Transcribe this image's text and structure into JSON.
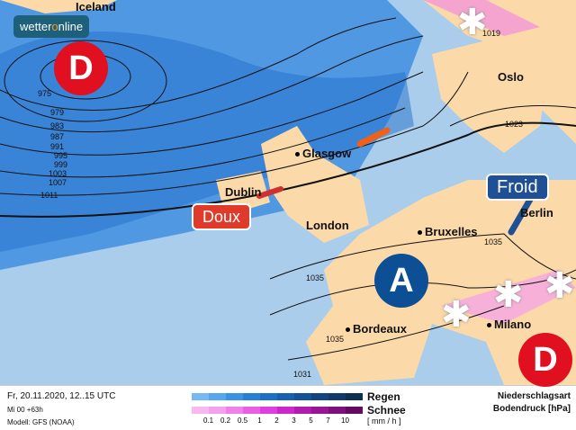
{
  "logo": {
    "prefix": "wetter",
    "highlight": "o",
    "suffix": "nline"
  },
  "map": {
    "cities": [
      "Iceland",
      "Oslo",
      "Glasgow",
      "Dublin",
      "London",
      "Bruxelles",
      "Berlin",
      "Bordeaux",
      "Milano"
    ],
    "isobars": [
      "975",
      "979",
      "983",
      "987",
      "991",
      "995",
      "999",
      "1003",
      "1007",
      "1011",
      "1019",
      "1023",
      "1035",
      "1035",
      "1035",
      "1031"
    ],
    "pressure_systems": [
      {
        "label": "D",
        "type": "low",
        "color": "#e01020"
      },
      {
        "label": "A",
        "type": "high",
        "color": "#0c4f95"
      },
      {
        "label": "D",
        "type": "low",
        "color": "#e01020"
      }
    ],
    "tags": {
      "warm": "Doux",
      "cold": "Froid"
    },
    "colors": {
      "land": "#fcd9a8",
      "sea": "#a9cdeb",
      "rain": "#3a8ce0",
      "warm_arrow": "#f06018",
      "cold_arrow": "#1f4f95"
    }
  },
  "legend": {
    "date": "Fr, 20.11.2020, 12..15 UTC",
    "run": "Mi 00 +63h",
    "model": "Modell: GFS (NOAA)",
    "rain_label": "Regen",
    "snow_label": "Schnee",
    "unit": "[ mm / h ]",
    "ticks": [
      "0.1",
      "0.2",
      "0.5",
      "1",
      "2",
      "3",
      "5",
      "7",
      "10"
    ],
    "rain_colors": [
      "#74b8f5",
      "#55a5ef",
      "#3b91e5",
      "#2780d8",
      "#1b6fc7",
      "#165fb2",
      "#13519b",
      "#124482",
      "#113a6a",
      "#0f2f52"
    ],
    "snow_colors": [
      "#f8b8f0",
      "#f5a0ee",
      "#f080ea",
      "#ea5ee6",
      "#df3ee0",
      "#cc28cc",
      "#b21bb2",
      "#981595",
      "#7d107c",
      "#660a66"
    ],
    "title1": "Niederschlagsart",
    "title2": "Bodendruck [hPa]"
  }
}
